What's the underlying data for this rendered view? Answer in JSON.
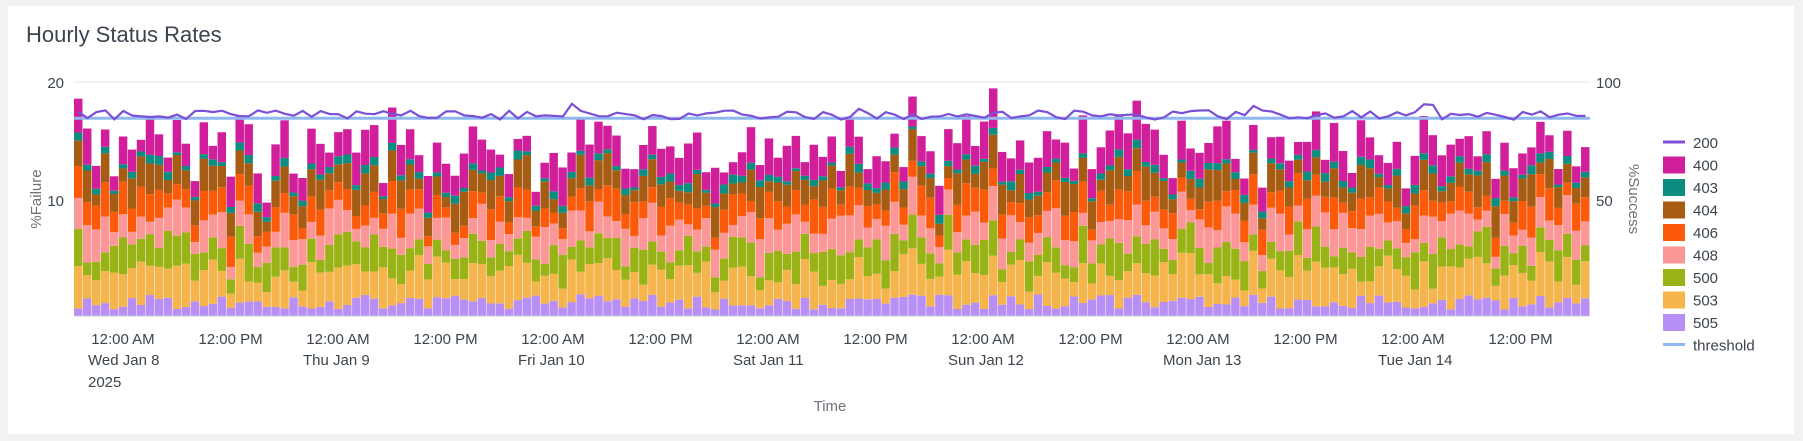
{
  "panel": {
    "title": "Hourly Status Rates"
  },
  "chart_data": {
    "type": "bar",
    "stacked": true,
    "title": "Hourly Status Rates",
    "xlabel": "Time",
    "ylabel_left": "%Failure",
    "ylabel_right": "%Success",
    "ylim_left": [
      0,
      20
    ],
    "ylim_right": [
      0,
      100
    ],
    "yticks_left": [
      "10",
      "20"
    ],
    "yticks_right": [
      "50",
      "100"
    ],
    "x_ticks": [
      {
        "label": "12:00 AM",
        "sub": [
          "Wed Jan 8",
          "2025"
        ]
      },
      {
        "label": "12:00 PM",
        "sub": []
      },
      {
        "label": "12:00 AM",
        "sub": [
          "Thu Jan 9"
        ]
      },
      {
        "label": "12:00 PM",
        "sub": []
      },
      {
        "label": "12:00 AM",
        "sub": [
          "Fri Jan 10"
        ]
      },
      {
        "label": "12:00 PM",
        "sub": []
      },
      {
        "label": "12:00 AM",
        "sub": [
          "Sat Jan 11"
        ]
      },
      {
        "label": "12:00 PM",
        "sub": []
      },
      {
        "label": "12:00 AM",
        "sub": [
          "Sun Jan 12"
        ]
      },
      {
        "label": "12:00 PM",
        "sub": []
      },
      {
        "label": "12:00 AM",
        "sub": [
          "Mon Jan 13"
        ]
      },
      {
        "label": "12:00 PM",
        "sub": []
      },
      {
        "label": "12:00 AM",
        "sub": [
          "Tue Jan 14"
        ]
      },
      {
        "label": "12:00 PM",
        "sub": []
      }
    ],
    "hours": 169,
    "bar_series": [
      {
        "name": "505",
        "color": "#b88ff5",
        "base": 1.2
      },
      {
        "name": "503",
        "color": "#f5b44c",
        "base": 2.6
      },
      {
        "name": "500",
        "color": "#99b215",
        "base": 2.1
      },
      {
        "name": "408",
        "color": "#fc9797",
        "base": 2.2
      },
      {
        "name": "406",
        "color": "#fa5a0a",
        "base": 1.9
      },
      {
        "name": "404",
        "color": "#a65c12",
        "base": 1.9
      },
      {
        "name": "403",
        "color": "#0d8c80",
        "base": 0.5
      },
      {
        "name": "400",
        "color": "#d11f9b",
        "base": 2.2
      }
    ],
    "line_series": [
      {
        "name": "200",
        "color": "#7b4fd6",
        "level": 85.5
      },
      {
        "name": "threshold",
        "color": "#8fb8f0",
        "value": 84.5
      }
    ],
    "legend": [
      "200",
      "400",
      "403",
      "404",
      "406",
      "408",
      "500",
      "503",
      "505",
      "threshold"
    ],
    "legend_placement": "right",
    "grid": true
  }
}
